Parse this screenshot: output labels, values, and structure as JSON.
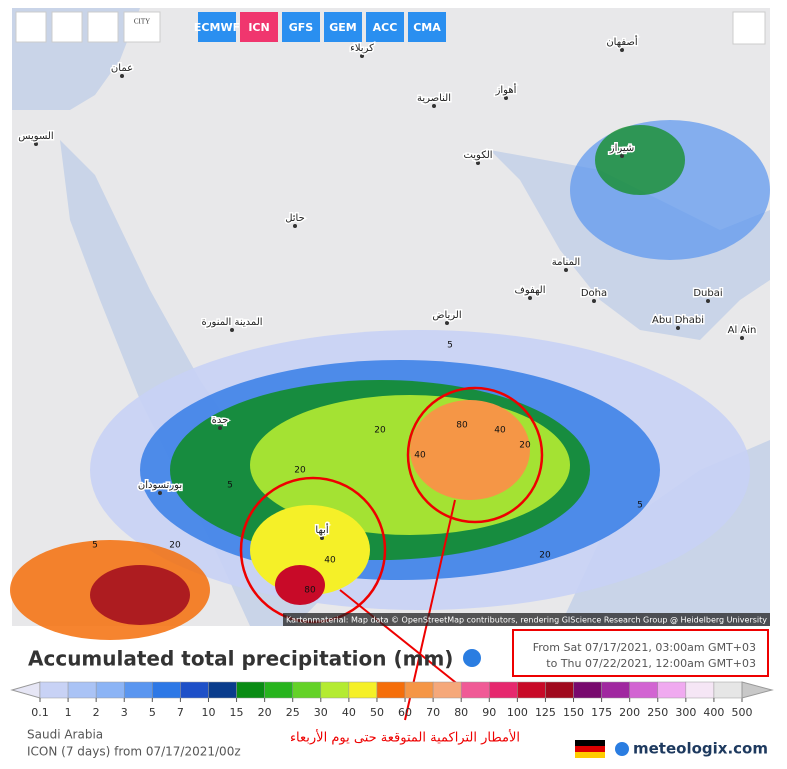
{
  "toolbar": {
    "city_button": "CITY",
    "models": [
      "ECMWF",
      "ICN",
      "GFS",
      "GEM",
      "ACC",
      "CMA"
    ],
    "active": "ICN"
  },
  "map": {
    "labels": [
      "عمان",
      "السويس",
      "كربلاء",
      "الناصرية",
      "أهواز",
      "أصفهان",
      "الكويت",
      "شيراز",
      "حائل",
      "المدينة المنورة",
      "المنامة",
      "الهفوف",
      "Doha",
      "Dubai",
      "Abu Dhabi",
      "Al Ain",
      "الرياض",
      "جدة",
      "بورتسودان",
      "أبها"
    ],
    "contours": [
      5,
      20,
      40,
      80,
      40,
      20,
      5,
      20,
      40,
      80,
      20,
      5,
      20,
      5
    ],
    "attribution": "Kartenmaterial: Map data © OpenStreetMap contributors, rendering GIScience Research Group @ Heidelberg University"
  },
  "header": {
    "title": "Accumulated total precipitation (mm)"
  },
  "period": {
    "from": "From Sat 07/17/2021, 03:00am GMT+03",
    "to": "to Thu 07/22/2021, 12:00am GMT+03"
  },
  "legend": {
    "values": [
      "0.1",
      1,
      2,
      3,
      5,
      7,
      10,
      15,
      20,
      25,
      30,
      40,
      50,
      60,
      70,
      80,
      90,
      100,
      125,
      150,
      175,
      200,
      250,
      300,
      400,
      500
    ],
    "colors": [
      "#c8d2f5",
      "#aac3f5",
      "#8cb4f5",
      "#5a96f0",
      "#2d78e6",
      "#1e50c8",
      "#0a3c8c",
      "#0a8c14",
      "#28b41e",
      "#64d228",
      "#b4eb32",
      "#f5f028",
      "#f56e0a",
      "#f59646",
      "#f5a87a",
      "#f05a96",
      "#e6286e",
      "#c80a28",
      "#a00a1e",
      "#780a6e",
      "#a028a0",
      "#d264d2",
      "#f0aaf0",
      "#f5e6f5",
      "#e6e6e6",
      "#c8c8c8"
    ]
  },
  "footer": {
    "region": "Saudi Arabia",
    "model_run": "ICON (7 days) from 07/17/2021/00z",
    "annotation": "الأمطار التراكمية المتوقعة حتى يوم الأربعاء",
    "brand": "meteologix.com"
  }
}
